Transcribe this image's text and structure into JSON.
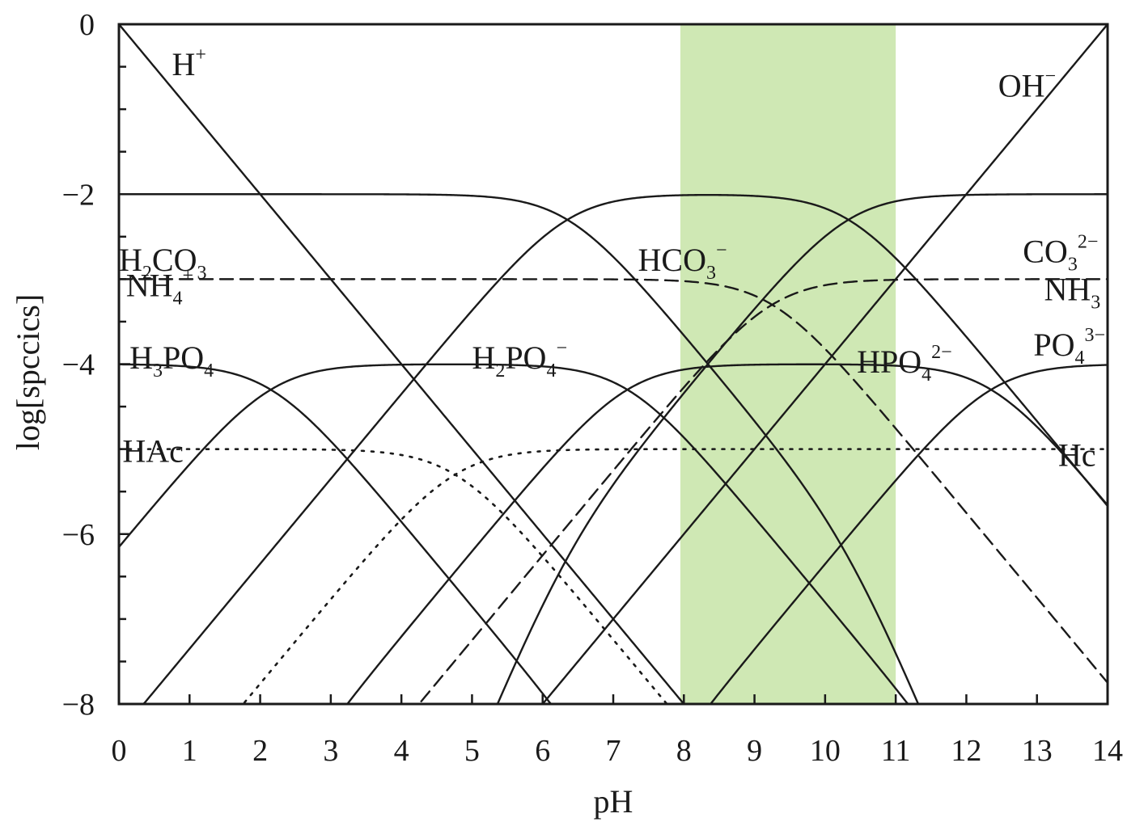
{
  "chart_data": {
    "type": "line",
    "xlabel": "pH",
    "ylabel": "log[spccics]",
    "xlim": [
      0,
      14
    ],
    "ylim": [
      -8,
      0
    ],
    "x_ticks": [
      "0",
      "1",
      "2",
      "3",
      "4",
      "5",
      "6",
      "7",
      "8",
      "9",
      "10",
      "11",
      "12",
      "13",
      "14"
    ],
    "y_ticks": [
      {
        "v": 0,
        "label": "0"
      },
      {
        "v": -2,
        "label": "−2"
      },
      {
        "v": -4,
        "label": "−4"
      },
      {
        "v": -6,
        "label": "−6"
      },
      {
        "v": -8,
        "label": "−8"
      }
    ],
    "highlight_band": {
      "x_from": 7.95,
      "x_to": 11.0,
      "color": "#cfe8b4"
    },
    "colors": {
      "line": "#1a1a1a",
      "band": "#cfe8b4",
      "frame": "#1a1a1a"
    },
    "systems": [
      {
        "log_total": -2,
        "pKa": [
          6.35,
          10.33
        ],
        "style": "solid"
      },
      {
        "log_total": -3,
        "pKa": [
          9.25
        ],
        "style": "dashed"
      },
      {
        "log_total": -4,
        "pKa": [
          2.15,
          7.2,
          12.35
        ],
        "style": "solid"
      },
      {
        "log_total": -5,
        "pKa": [
          4.76
        ],
        "style": "dotted"
      }
    ],
    "water": {
      "pKw": 14
    },
    "species_labels": [
      {
        "key": "h",
        "base": "H",
        "sup": "+",
        "x": 0.75,
        "y": -0.6
      },
      {
        "key": "oh",
        "base": "OH",
        "sup": "−",
        "x": 12.45,
        "y": -0.85
      },
      {
        "key": "h2co3",
        "parts": [
          [
            "H",
            ""
          ],
          [
            "2",
            "sub"
          ],
          [
            "CO",
            ""
          ],
          [
            "3",
            "sub"
          ]
        ],
        "x": 0.0,
        "y": -2.9
      },
      {
        "key": "hco3",
        "parts": [
          [
            "HCO",
            ""
          ],
          [
            "3",
            "sub"
          ],
          [
            "−",
            "sup"
          ]
        ],
        "x": 7.35,
        "y": -2.9
      },
      {
        "key": "co3",
        "parts": [
          [
            "CO",
            ""
          ],
          [
            "3",
            "sub"
          ],
          [
            "2−",
            "sup"
          ]
        ],
        "x": 12.8,
        "y": -2.8
      },
      {
        "key": "nh4",
        "parts": [
          [
            "NH",
            ""
          ],
          [
            "4",
            "sub"
          ],
          [
            "+",
            "sup"
          ]
        ],
        "x": 0.1,
        "y": -3.2
      },
      {
        "key": "nh3",
        "parts": [
          [
            "NH",
            ""
          ],
          [
            "3",
            "sub"
          ]
        ],
        "x": 13.1,
        "y": -3.25
      },
      {
        "key": "h3po4",
        "parts": [
          [
            "H",
            ""
          ],
          [
            "3",
            "sub"
          ],
          [
            "PO",
            ""
          ],
          [
            "4",
            "sub"
          ]
        ],
        "x": 0.15,
        "y": -4.05
      },
      {
        "key": "h2po4",
        "parts": [
          [
            "H",
            ""
          ],
          [
            "2",
            "sub"
          ],
          [
            "PO",
            ""
          ],
          [
            "4",
            "sub"
          ],
          [
            "−",
            "sup"
          ]
        ],
        "x": 5.0,
        "y": -4.05
      },
      {
        "key": "hpo4",
        "parts": [
          [
            "HPO",
            ""
          ],
          [
            "4",
            "sub"
          ],
          [
            "2−",
            "sup"
          ]
        ],
        "x": 10.45,
        "y": -4.1
      },
      {
        "key": "po4",
        "parts": [
          [
            "PO",
            ""
          ],
          [
            "4",
            "sub"
          ],
          [
            "3−",
            "sup"
          ]
        ],
        "x": 12.95,
        "y": -3.9
      },
      {
        "key": "hac",
        "parts": [
          [
            "HAc",
            ""
          ]
        ],
        "x": 0.05,
        "y": -5.15
      },
      {
        "key": "ac",
        "parts": [
          [
            "Hc",
            ""
          ]
        ],
        "x": 13.3,
        "y": -5.2
      }
    ]
  }
}
